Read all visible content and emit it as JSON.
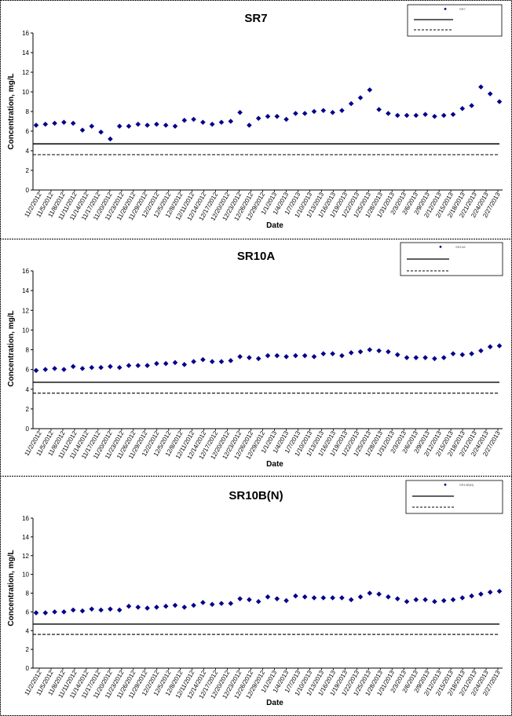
{
  "chart_data": [
    {
      "type": "scatter",
      "title": "SR7",
      "xlabel": "Date",
      "ylabel": "Concentration, mg/L",
      "ylim": [
        0,
        16
      ],
      "yticks": [
        0,
        2,
        4,
        6,
        8,
        10,
        12,
        14,
        16
      ],
      "grid": false,
      "legend_position": "top-right",
      "x_tick_labels": [
        "11/2/2012",
        "11/5/2012",
        "11/8/2012",
        "11/11/2012",
        "11/14/2012",
        "11/17/2012",
        "11/20/2012",
        "11/23/2012",
        "11/26/2012",
        "11/29/2012",
        "12/2/2012",
        "12/5/2012",
        "12/8/2012",
        "12/11/2012",
        "12/14/2012",
        "12/17/2012",
        "12/20/2012",
        "12/23/2012",
        "12/26/2012",
        "12/29/2012",
        "1/1/2013",
        "1/4/2013",
        "1/7/2013",
        "1/10/2013",
        "1/13/2013",
        "1/16/2013",
        "1/19/2013",
        "1/22/2013",
        "1/25/2013",
        "1/28/2013",
        "1/31/2013",
        "2/3/2013",
        "2/6/2013",
        "2/9/2013",
        "2/12/2013",
        "2/15/2013",
        "2/18/2013",
        "2/21/2013",
        "2/24/2013",
        "2/27/2013"
      ],
      "series": [
        {
          "name": "SR7",
          "marker": "diamond",
          "color": "#00008B",
          "values": [
            6.6,
            6.7,
            6.8,
            6.9,
            6.8,
            6.1,
            6.5,
            5.9,
            5.2,
            6.5,
            6.5,
            6.7,
            6.6,
            6.7,
            6.6,
            6.5,
            7.1,
            7.2,
            6.9,
            6.7,
            6.9,
            7.0,
            7.9,
            6.6,
            7.3,
            7.5,
            7.5,
            7.2,
            7.8,
            7.8,
            8.0,
            8.1,
            7.9,
            8.1,
            8.8,
            9.4,
            10.2,
            8.2,
            7.8,
            7.6,
            7.6,
            7.6,
            7.7,
            7.5,
            7.6,
            7.7,
            8.3,
            8.6,
            10.5,
            9.8,
            9.0
          ]
        }
      ],
      "reference_lines": [
        {
          "value": 4.7,
          "style": "solid",
          "color": "#000000"
        },
        {
          "value": 3.6,
          "style": "dashed",
          "color": "#000000"
        }
      ]
    },
    {
      "type": "scatter",
      "title": "SR10A",
      "xlabel": "Date",
      "ylabel": "Concentration, mg/L",
      "ylim": [
        0,
        16
      ],
      "yticks": [
        0,
        2,
        4,
        6,
        8,
        10,
        12,
        14,
        16
      ],
      "grid": false,
      "legend_position": "top-right",
      "x_tick_labels": [
        "11/2/2012",
        "11/5/2012",
        "11/8/2012",
        "11/11/2012",
        "11/14/2012",
        "11/17/2012",
        "11/20/2012",
        "11/23/2012",
        "11/26/2012",
        "11/29/2012",
        "12/2/2012",
        "12/5/2012",
        "12/8/2012",
        "12/11/2012",
        "12/14/2012",
        "12/17/2012",
        "12/20/2012",
        "12/23/2012",
        "12/26/2012",
        "12/29/2012",
        "1/1/2013",
        "1/4/2013",
        "1/7/2013",
        "1/10/2013",
        "1/13/2013",
        "1/16/2013",
        "1/19/2013",
        "1/22/2013",
        "1/25/2013",
        "1/28/2013",
        "1/31/2013",
        "2/3/2013",
        "2/6/2013",
        "2/9/2013",
        "2/12/2013",
        "2/15/2013",
        "2/18/2013",
        "2/21/2013",
        "2/24/2013",
        "2/27/2013"
      ],
      "series": [
        {
          "name": "SR10A",
          "marker": "diamond",
          "color": "#00008B",
          "values": [
            5.9,
            6.0,
            6.1,
            6.0,
            6.3,
            6.1,
            6.2,
            6.2,
            6.3,
            6.2,
            6.4,
            6.4,
            6.4,
            6.6,
            6.6,
            6.7,
            6.5,
            6.8,
            7.0,
            6.8,
            6.8,
            6.9,
            7.3,
            7.2,
            7.1,
            7.4,
            7.4,
            7.3,
            7.4,
            7.4,
            7.3,
            7.6,
            7.6,
            7.4,
            7.7,
            7.8,
            8.0,
            7.9,
            7.8,
            7.5,
            7.2,
            7.2,
            7.2,
            7.1,
            7.2,
            7.6,
            7.5,
            7.6,
            7.9,
            8.3,
            8.4
          ]
        }
      ],
      "reference_lines": [
        {
          "value": 4.7,
          "style": "solid",
          "color": "#000000"
        },
        {
          "value": 3.6,
          "style": "dashed",
          "color": "#000000"
        }
      ]
    },
    {
      "type": "scatter",
      "title": "SR10B(N)",
      "xlabel": "Date",
      "ylabel": "Concentration, mg/L",
      "ylim": [
        0,
        16
      ],
      "yticks": [
        0,
        2,
        4,
        6,
        8,
        10,
        12,
        14,
        16
      ],
      "grid": false,
      "legend_position": "top-right",
      "x_tick_labels": [
        "11/2/2012",
        "11/5/2012",
        "11/8/2012",
        "11/11/2012",
        "11/14/2012",
        "11/17/2012",
        "11/20/2012",
        "11/23/2012",
        "11/26/2012",
        "11/29/2012",
        "12/2/2012",
        "12/5/2012",
        "12/8/2012",
        "12/11/2012",
        "12/14/2012",
        "12/17/2012",
        "12/20/2012",
        "12/23/2012",
        "12/26/2012",
        "12/29/2012",
        "1/1/2013",
        "1/4/2013",
        "1/7/2013",
        "1/10/2013",
        "1/13/2013",
        "1/16/2013",
        "1/19/2013",
        "1/22/2013",
        "1/25/2013",
        "1/28/2013",
        "1/31/2013",
        "2/3/2013",
        "2/6/2013",
        "2/9/2013",
        "2/12/2013",
        "2/15/2013",
        "2/18/2013",
        "2/21/2013",
        "2/24/2013",
        "2/27/2013"
      ],
      "series": [
        {
          "name": "SR10B(N)",
          "marker": "diamond",
          "color": "#00008B",
          "values": [
            5.9,
            5.9,
            6.0,
            6.0,
            6.2,
            6.1,
            6.3,
            6.2,
            6.3,
            6.2,
            6.6,
            6.5,
            6.4,
            6.5,
            6.6,
            6.7,
            6.5,
            6.7,
            7.0,
            6.8,
            6.9,
            6.9,
            7.4,
            7.3,
            7.1,
            7.6,
            7.4,
            7.2,
            7.7,
            7.6,
            7.5,
            7.5,
            7.5,
            7.5,
            7.3,
            7.6,
            8.0,
            7.9,
            7.6,
            7.4,
            7.1,
            7.3,
            7.3,
            7.1,
            7.2,
            7.3,
            7.5,
            7.7,
            7.9,
            8.1,
            8.2
          ]
        }
      ],
      "reference_lines": [
        {
          "value": 4.7,
          "style": "solid",
          "color": "#000000"
        },
        {
          "value": 3.6,
          "style": "dashed",
          "color": "#000000"
        }
      ]
    }
  ]
}
